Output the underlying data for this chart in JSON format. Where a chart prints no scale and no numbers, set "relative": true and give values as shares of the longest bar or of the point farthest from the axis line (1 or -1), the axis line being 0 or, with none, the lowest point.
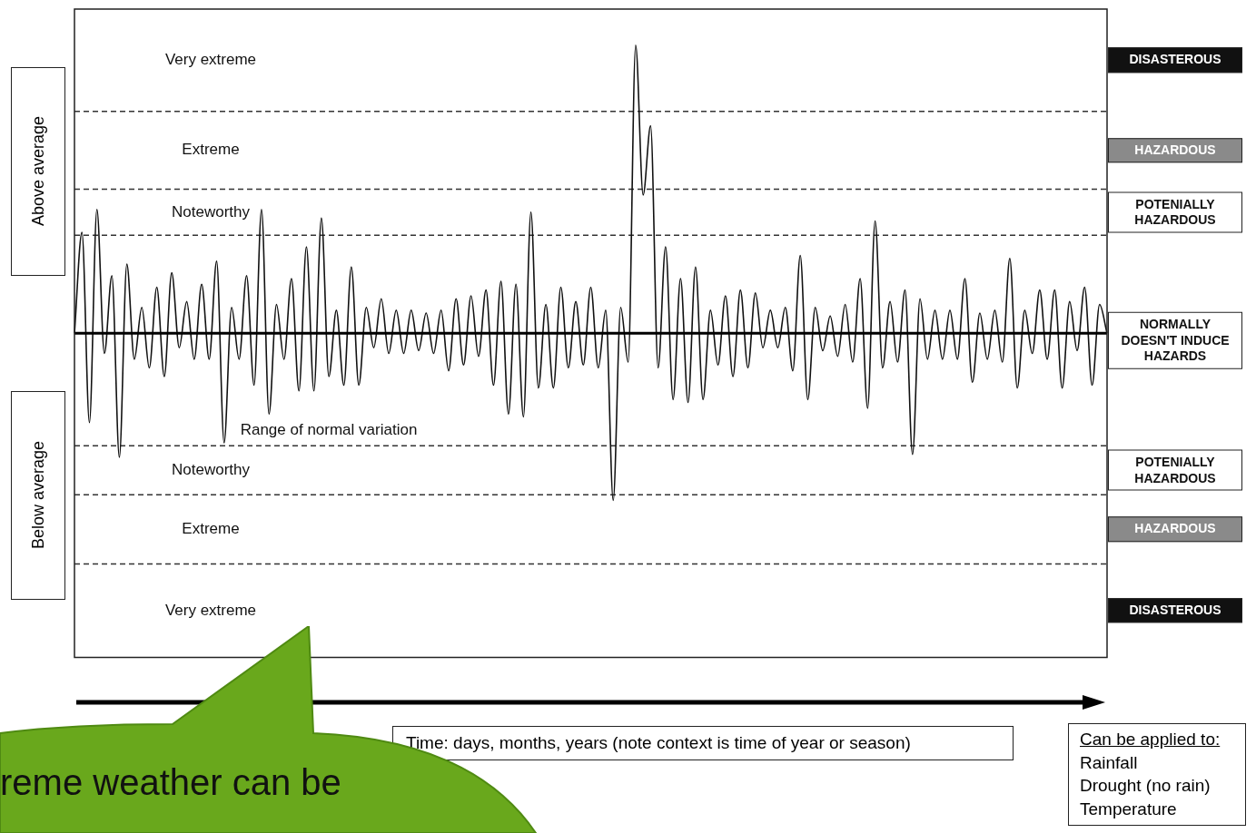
{
  "chart_data": {
    "type": "line",
    "relative": true,
    "legend": false,
    "grid": false,
    "marker": "none",
    "line_style": "solid",
    "categories": [
      null,
      null,
      null,
      null,
      null,
      null,
      null,
      null,
      null,
      null,
      null,
      null,
      null,
      null,
      null,
      null,
      null,
      null,
      null,
      null,
      null,
      null,
      null,
      null,
      null,
      null,
      null,
      null,
      null,
      null,
      null,
      null,
      null,
      null,
      null,
      null,
      null,
      null,
      null,
      null,
      null,
      null,
      null,
      null,
      null,
      null,
      null,
      null,
      null,
      null,
      null,
      null,
      null,
      null,
      null,
      null,
      null,
      null,
      null,
      null,
      null,
      null,
      null,
      null,
      null,
      null,
      null,
      null,
      null,
      null,
      null,
      null,
      null,
      null,
      null,
      null,
      null,
      null,
      null,
      null,
      null,
      null,
      null,
      null,
      null,
      null,
      null,
      null,
      null,
      null,
      null,
      null,
      null,
      null,
      null,
      null,
      null,
      null,
      null,
      null,
      null,
      null,
      null,
      null,
      null,
      null,
      null,
      null,
      null,
      null,
      null,
      null,
      null,
      null,
      null,
      null,
      null,
      null,
      null,
      null,
      null,
      null,
      null,
      null,
      null,
      null,
      null,
      null,
      null,
      null,
      null,
      null,
      null,
      null,
      null,
      null,
      null,
      null,
      null
    ],
    "series": [
      {
        "color": "#111111",
        "values": [
          0,
          0.35,
          -0.31,
          0.43,
          -0.07,
          0.2,
          -0.43,
          0.24,
          -0.09,
          0.09,
          -0.12,
          0.16,
          -0.15,
          0.21,
          -0.05,
          0.11,
          -0.09,
          0.17,
          -0.09,
          0.25,
          -0.38,
          0.09,
          -0.09,
          0.2,
          -0.18,
          0.43,
          -0.28,
          0.1,
          -0.09,
          0.19,
          -0.2,
          0.3,
          -0.2,
          0.4,
          -0.15,
          0.08,
          -0.18,
          0.23,
          -0.18,
          0.09,
          -0.05,
          0.12,
          -0.07,
          0.08,
          -0.07,
          0.08,
          -0.06,
          0.07,
          -0.07,
          0.08,
          -0.13,
          0.12,
          -0.11,
          0.13,
          -0.08,
          0.15,
          -0.18,
          0.18,
          -0.28,
          0.17,
          -0.29,
          0.42,
          -0.19,
          0.1,
          -0.19,
          0.16,
          -0.12,
          0.11,
          -0.11,
          0.16,
          -0.12,
          0.08,
          -0.58,
          0.09,
          -0.1,
          1,
          0.48,
          0.72,
          -0.12,
          0.3,
          -0.23,
          0.19,
          -0.24,
          0.23,
          -0.23,
          0.08,
          -0.11,
          0.13,
          -0.15,
          0.15,
          -0.12,
          0.14,
          -0.05,
          0.08,
          -0.05,
          0.09,
          -0.13,
          0.27,
          -0.23,
          0.09,
          -0.06,
          0.06,
          -0.08,
          0.1,
          -0.1,
          0.19,
          -0.26,
          0.39,
          -0.12,
          0.11,
          -0.1,
          0.15,
          -0.42,
          0.12,
          -0.09,
          0.08,
          -0.09,
          0.08,
          -0.09,
          0.19,
          -0.17,
          0.07,
          -0.09,
          0.08,
          -0.1,
          0.26,
          -0.19,
          0.08,
          -0.07,
          0.15,
          -0.09,
          0.15,
          -0.19,
          0.11,
          -0.06,
          0.16,
          -0.18,
          0.1,
          0
        ]
      }
    ],
    "ref_lines": [
      {
        "axis": "y",
        "value": 0.77,
        "line_style": "dashed"
      },
      {
        "axis": "y",
        "value": 0.5,
        "line_style": "dashed"
      },
      {
        "axis": "y",
        "value": 0.34,
        "line_style": "dashed"
      },
      {
        "axis": "y",
        "value": -0.39,
        "line_style": "dashed"
      },
      {
        "axis": "y",
        "value": -0.56,
        "line_style": "dashed"
      },
      {
        "axis": "y",
        "value": -0.8,
        "line_style": "dashed"
      }
    ],
    "annotations": [
      "Very extreme",
      "Extreme",
      "Noteworthy",
      "Range of normal variation",
      "Noteworthy",
      "Extreme",
      "Very extreme",
      "DISASTEROUS",
      "HAZARDOUS",
      "POTENIALLY HAZARDOUS",
      "NORMALLY DOESN'T INDUCE HAZARDS",
      "POTENIALLY HAZARDOUS",
      "HAZARDOUS",
      "DISASTEROUS",
      "Above average",
      "Below average",
      "Time: days, months, years (note context is time of year or season)",
      "Can be applied to:\nRainfall\nDrought (no rain)\nTemperature",
      "reme weather can be"
    ]
  }
}
